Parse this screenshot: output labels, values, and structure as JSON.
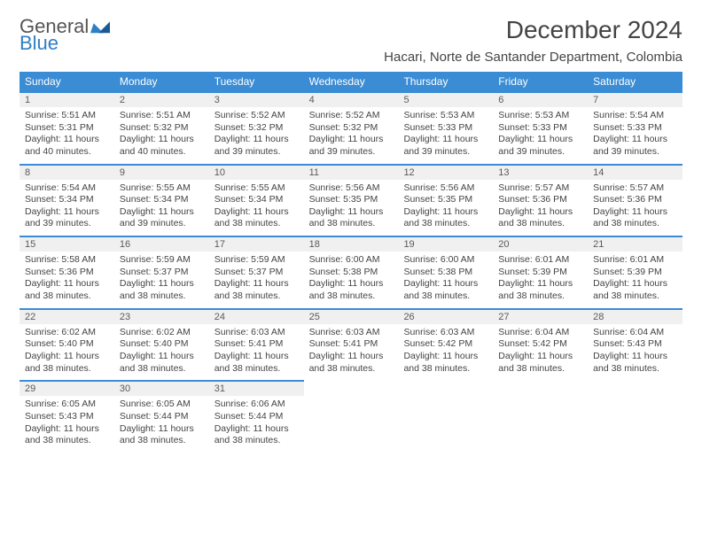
{
  "logo": {
    "line1": "General",
    "line2": "Blue"
  },
  "header": {
    "month_title": "December 2024",
    "location": "Hacari, Norte de Santander Department, Colombia"
  },
  "colors": {
    "header_blue": "#3a8cd4",
    "logo_blue": "#2f7fc4",
    "light_gray_bar": "#f0f0f0",
    "text": "#444444"
  },
  "day_names": [
    "Sunday",
    "Monday",
    "Tuesday",
    "Wednesday",
    "Thursday",
    "Friday",
    "Saturday"
  ],
  "weeks": [
    [
      {
        "n": "1",
        "sr": "Sunrise: 5:51 AM",
        "ss": "Sunset: 5:31 PM",
        "dl": "Daylight: 11 hours and 40 minutes."
      },
      {
        "n": "2",
        "sr": "Sunrise: 5:51 AM",
        "ss": "Sunset: 5:32 PM",
        "dl": "Daylight: 11 hours and 40 minutes."
      },
      {
        "n": "3",
        "sr": "Sunrise: 5:52 AM",
        "ss": "Sunset: 5:32 PM",
        "dl": "Daylight: 11 hours and 39 minutes."
      },
      {
        "n": "4",
        "sr": "Sunrise: 5:52 AM",
        "ss": "Sunset: 5:32 PM",
        "dl": "Daylight: 11 hours and 39 minutes."
      },
      {
        "n": "5",
        "sr": "Sunrise: 5:53 AM",
        "ss": "Sunset: 5:33 PM",
        "dl": "Daylight: 11 hours and 39 minutes."
      },
      {
        "n": "6",
        "sr": "Sunrise: 5:53 AM",
        "ss": "Sunset: 5:33 PM",
        "dl": "Daylight: 11 hours and 39 minutes."
      },
      {
        "n": "7",
        "sr": "Sunrise: 5:54 AM",
        "ss": "Sunset: 5:33 PM",
        "dl": "Daylight: 11 hours and 39 minutes."
      }
    ],
    [
      {
        "n": "8",
        "sr": "Sunrise: 5:54 AM",
        "ss": "Sunset: 5:34 PM",
        "dl": "Daylight: 11 hours and 39 minutes."
      },
      {
        "n": "9",
        "sr": "Sunrise: 5:55 AM",
        "ss": "Sunset: 5:34 PM",
        "dl": "Daylight: 11 hours and 39 minutes."
      },
      {
        "n": "10",
        "sr": "Sunrise: 5:55 AM",
        "ss": "Sunset: 5:34 PM",
        "dl": "Daylight: 11 hours and 38 minutes."
      },
      {
        "n": "11",
        "sr": "Sunrise: 5:56 AM",
        "ss": "Sunset: 5:35 PM",
        "dl": "Daylight: 11 hours and 38 minutes."
      },
      {
        "n": "12",
        "sr": "Sunrise: 5:56 AM",
        "ss": "Sunset: 5:35 PM",
        "dl": "Daylight: 11 hours and 38 minutes."
      },
      {
        "n": "13",
        "sr": "Sunrise: 5:57 AM",
        "ss": "Sunset: 5:36 PM",
        "dl": "Daylight: 11 hours and 38 minutes."
      },
      {
        "n": "14",
        "sr": "Sunrise: 5:57 AM",
        "ss": "Sunset: 5:36 PM",
        "dl": "Daylight: 11 hours and 38 minutes."
      }
    ],
    [
      {
        "n": "15",
        "sr": "Sunrise: 5:58 AM",
        "ss": "Sunset: 5:36 PM",
        "dl": "Daylight: 11 hours and 38 minutes."
      },
      {
        "n": "16",
        "sr": "Sunrise: 5:59 AM",
        "ss": "Sunset: 5:37 PM",
        "dl": "Daylight: 11 hours and 38 minutes."
      },
      {
        "n": "17",
        "sr": "Sunrise: 5:59 AM",
        "ss": "Sunset: 5:37 PM",
        "dl": "Daylight: 11 hours and 38 minutes."
      },
      {
        "n": "18",
        "sr": "Sunrise: 6:00 AM",
        "ss": "Sunset: 5:38 PM",
        "dl": "Daylight: 11 hours and 38 minutes."
      },
      {
        "n": "19",
        "sr": "Sunrise: 6:00 AM",
        "ss": "Sunset: 5:38 PM",
        "dl": "Daylight: 11 hours and 38 minutes."
      },
      {
        "n": "20",
        "sr": "Sunrise: 6:01 AM",
        "ss": "Sunset: 5:39 PM",
        "dl": "Daylight: 11 hours and 38 minutes."
      },
      {
        "n": "21",
        "sr": "Sunrise: 6:01 AM",
        "ss": "Sunset: 5:39 PM",
        "dl": "Daylight: 11 hours and 38 minutes."
      }
    ],
    [
      {
        "n": "22",
        "sr": "Sunrise: 6:02 AM",
        "ss": "Sunset: 5:40 PM",
        "dl": "Daylight: 11 hours and 38 minutes."
      },
      {
        "n": "23",
        "sr": "Sunrise: 6:02 AM",
        "ss": "Sunset: 5:40 PM",
        "dl": "Daylight: 11 hours and 38 minutes."
      },
      {
        "n": "24",
        "sr": "Sunrise: 6:03 AM",
        "ss": "Sunset: 5:41 PM",
        "dl": "Daylight: 11 hours and 38 minutes."
      },
      {
        "n": "25",
        "sr": "Sunrise: 6:03 AM",
        "ss": "Sunset: 5:41 PM",
        "dl": "Daylight: 11 hours and 38 minutes."
      },
      {
        "n": "26",
        "sr": "Sunrise: 6:03 AM",
        "ss": "Sunset: 5:42 PM",
        "dl": "Daylight: 11 hours and 38 minutes."
      },
      {
        "n": "27",
        "sr": "Sunrise: 6:04 AM",
        "ss": "Sunset: 5:42 PM",
        "dl": "Daylight: 11 hours and 38 minutes."
      },
      {
        "n": "28",
        "sr": "Sunrise: 6:04 AM",
        "ss": "Sunset: 5:43 PM",
        "dl": "Daylight: 11 hours and 38 minutes."
      }
    ],
    [
      {
        "n": "29",
        "sr": "Sunrise: 6:05 AM",
        "ss": "Sunset: 5:43 PM",
        "dl": "Daylight: 11 hours and 38 minutes."
      },
      {
        "n": "30",
        "sr": "Sunrise: 6:05 AM",
        "ss": "Sunset: 5:44 PM",
        "dl": "Daylight: 11 hours and 38 minutes."
      },
      {
        "n": "31",
        "sr": "Sunrise: 6:06 AM",
        "ss": "Sunset: 5:44 PM",
        "dl": "Daylight: 11 hours and 38 minutes."
      },
      null,
      null,
      null,
      null
    ]
  ]
}
